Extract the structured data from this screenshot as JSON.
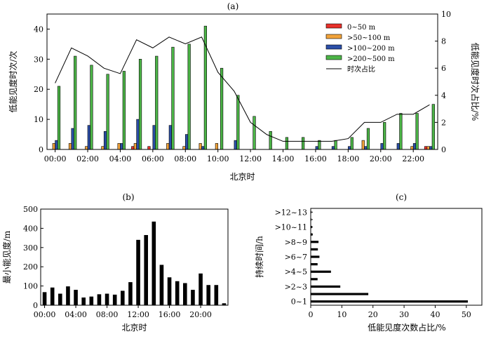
{
  "chart_data": [
    {
      "panel": "(a)",
      "type": "bar",
      "xlabel": "北京时",
      "ylabel": "低能见度时次/次",
      "y2label": "低能见度时次占比/%",
      "ylim": [
        0,
        45
      ],
      "y2lim": [
        0,
        10
      ],
      "yticks": [
        "0",
        "10",
        "20",
        "30",
        "40"
      ],
      "y2ticks": [
        "0",
        "2",
        "4",
        "6",
        "8",
        "10"
      ],
      "xticks": [
        "00:00",
        "02:00",
        "04:00",
        "06:00",
        "08:00",
        "10:00",
        "12:00",
        "14:00",
        "16:00",
        "18:00",
        "20:00",
        "22:00"
      ],
      "hours": [
        0,
        1,
        2,
        3,
        4,
        5,
        6,
        7,
        8,
        9,
        10,
        11,
        12,
        13,
        14,
        15,
        16,
        17,
        18,
        19,
        20,
        21,
        22,
        23
      ],
      "series": [
        {
          "name": "0~50 m",
          "color": "#e8302a",
          "values": [
            0,
            0,
            0,
            0,
            0,
            1,
            1,
            0,
            0,
            0,
            0,
            0,
            0,
            0,
            0,
            0,
            0,
            0,
            0,
            0,
            0,
            0,
            0,
            1
          ]
        },
        {
          "name": ">50~100 m",
          "color": "#f2a33a",
          "values": [
            2,
            2,
            1,
            1,
            2,
            2,
            0,
            2,
            1,
            2,
            2,
            0,
            0,
            0,
            0,
            0,
            0,
            0,
            0,
            3,
            0,
            0,
            1,
            1
          ]
        },
        {
          "name": ">100~200 m",
          "color": "#2b4fa8",
          "values": [
            3,
            7,
            8,
            6,
            2,
            10,
            8,
            8,
            5,
            1,
            0,
            3,
            0,
            0,
            0,
            0,
            1,
            1,
            1,
            1,
            2,
            2,
            2,
            1
          ]
        },
        {
          "name": ">200~500 m",
          "color": "#4cb547",
          "values": [
            21,
            31,
            28,
            25,
            26,
            30,
            31,
            34,
            35,
            41,
            27,
            18,
            11,
            6,
            4,
            4,
            3,
            3,
            4,
            7,
            9,
            12,
            12,
            15
          ]
        },
        {
          "name": "时次占比",
          "color": "#000000",
          "values": [
            4.9,
            7.5,
            6.9,
            6.0,
            5.6,
            8.1,
            7.5,
            8.3,
            7.8,
            8.3,
            5.7,
            4.3,
            2.0,
            1.1,
            0.6,
            0.6,
            0.6,
            0.6,
            0.8,
            2.0,
            2.0,
            2.6,
            2.6,
            3.3
          ]
        }
      ]
    },
    {
      "panel": "(b)",
      "type": "bar",
      "xlabel": "北京时",
      "ylabel": "最小能见度/m",
      "ylim": [
        0,
        500
      ],
      "yticks": [
        "0",
        "100",
        "200",
        "300",
        "400",
        "500"
      ],
      "xticks": [
        "00:00",
        "04:00",
        "08:00",
        "12:00",
        "16:00",
        "20:00"
      ],
      "hours": [
        0,
        1,
        2,
        3,
        4,
        5,
        6,
        7,
        8,
        9,
        10,
        11,
        12,
        13,
        14,
        15,
        16,
        17,
        18,
        19,
        20,
        21,
        22,
        23
      ],
      "values": [
        68,
        92,
        60,
        98,
        80,
        40,
        45,
        57,
        60,
        55,
        75,
        120,
        340,
        365,
        435,
        210,
        145,
        125,
        115,
        80,
        165,
        105,
        105,
        10
      ]
    },
    {
      "panel": "(c)",
      "type": "bar",
      "orientation": "horizontal",
      "xlabel": "低能见度次数占比/%",
      "ylabel": "持续时间/h",
      "xlim": [
        0,
        55
      ],
      "xticks": [
        "0",
        "10",
        "20",
        "30",
        "40",
        "50"
      ],
      "categories": [
        "0~1",
        ">1~2",
        ">2~3",
        ">3~4",
        ">4~5",
        ">5~6",
        ">6~7",
        ">7~8",
        ">8~9",
        ">9~10",
        ">10~11",
        ">11~12",
        ">12~13"
      ],
      "labels_shown": [
        "0~1",
        ">2~3",
        ">4~5",
        ">6~7",
        ">8~9",
        ">10~11",
        ">12~13"
      ],
      "values": [
        50.5,
        18.5,
        9.5,
        2.2,
        6.5,
        2.2,
        2.8,
        2.3,
        2.5,
        0.6,
        0.4,
        0.2,
        0.2
      ]
    }
  ]
}
